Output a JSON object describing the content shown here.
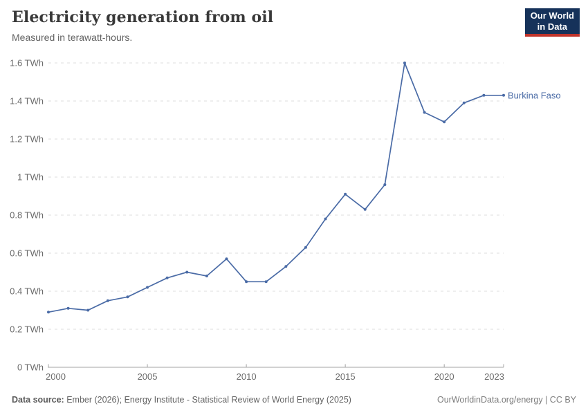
{
  "header": {
    "title": "Electricity generation from oil",
    "subtitle": "Measured in terawatt-hours."
  },
  "logo": {
    "line1": "Our World",
    "line2": "in Data",
    "bg_color": "#16325a",
    "accent_color": "#c0342b"
  },
  "chart_data": {
    "type": "line",
    "title": "Electricity generation from oil",
    "unit": "TWh",
    "xlim": [
      2000,
      2023
    ],
    "ylim": [
      0,
      1.6
    ],
    "x_ticks": [
      2000,
      2005,
      2010,
      2015,
      2020,
      2023
    ],
    "y_ticks": [
      0,
      0.2,
      0.4,
      0.6,
      0.8,
      1,
      1.2,
      1.4,
      1.6
    ],
    "grid": "horizontal-dashed",
    "legend_position": "end-of-line-label",
    "series": [
      {
        "name": "Burkina Faso",
        "color": "#4a6ba6",
        "x": [
          2000,
          2001,
          2002,
          2003,
          2004,
          2005,
          2006,
          2007,
          2008,
          2009,
          2010,
          2011,
          2012,
          2013,
          2014,
          2015,
          2016,
          2017,
          2018,
          2019,
          2020,
          2021,
          2022,
          2023
        ],
        "values": [
          0.29,
          0.31,
          0.3,
          0.35,
          0.37,
          0.42,
          0.47,
          0.5,
          0.48,
          0.57,
          0.45,
          0.45,
          0.53,
          0.63,
          0.78,
          0.91,
          0.83,
          0.96,
          1.6,
          1.34,
          1.29,
          1.39,
          1.43,
          1.43
        ]
      }
    ]
  },
  "footer": {
    "source_label": "Data source:",
    "source_text": " Ember (2026); Energy Institute - Statistical Review of World Energy (2025)",
    "credit": "OurWorldinData.org/energy | CC BY"
  }
}
